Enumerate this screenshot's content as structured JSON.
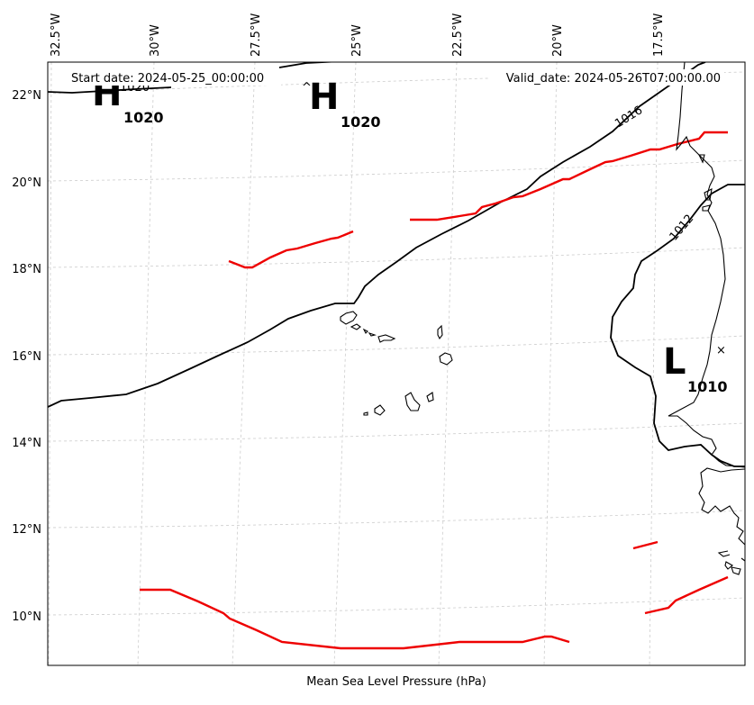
{
  "header": {
    "start_date": "Start date: 2024-05-25_00:00:00",
    "valid_date": "Valid_date: 2024-05-26T07:00:00.00"
  },
  "footer": {
    "caption": "Mean Sea Level Pressure (hPa)"
  },
  "axes": {
    "lon_ticks": [
      "32.5°W",
      "30°W",
      "27.5°W",
      "25°W",
      "22.5°W",
      "20°W",
      "17.5°W"
    ],
    "lat_ticks": [
      "22°N",
      "20°N",
      "18°N",
      "16°N",
      "14°N",
      "12°N",
      "10°N"
    ]
  },
  "pressure_centers": [
    {
      "type": "high",
      "letter": "H",
      "value": "1020"
    },
    {
      "type": "high",
      "letter": "H",
      "value": "1020"
    },
    {
      "type": "low",
      "letter": "L",
      "value": "1010"
    }
  ],
  "isobar_labels": [
    "1020",
    "1016",
    "1012"
  ],
  "low_marker": "×",
  "colors": {
    "isobar": "#000000",
    "front": "#ee0000",
    "grid": "#cccccc",
    "coast": "#000000"
  }
}
